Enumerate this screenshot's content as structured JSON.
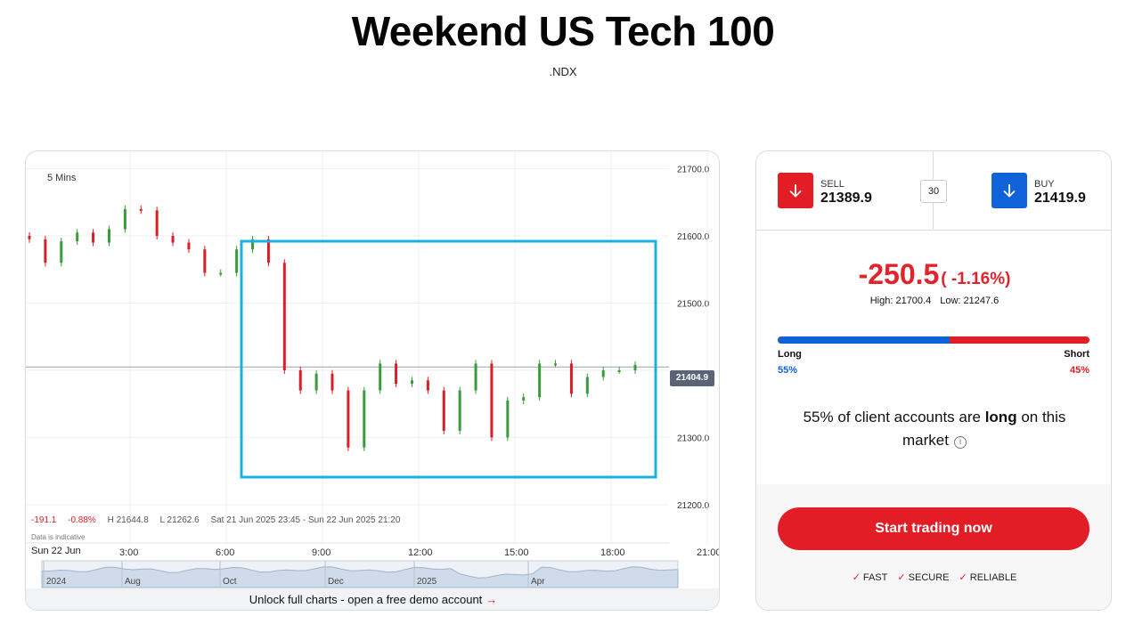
{
  "header": {
    "title": "Weekend US Tech 100",
    "symbol": ".NDX"
  },
  "chart": {
    "interval": "5 Mins",
    "y_ticks": [
      "21700.0",
      "21600.0",
      "21500.0",
      "21300.0",
      "21200.0"
    ],
    "x_ticks": [
      "3:00",
      "6:00",
      "9:00",
      "12:00",
      "15:00",
      "18:00",
      "21:00"
    ],
    "last_price": "21404.9",
    "stats": {
      "change": "-191.1",
      "change_pct": "-0.88%",
      "high": "H 21644.8",
      "low": "L 21262.6",
      "range": "Sat 21 Jun 2025 23:45 - Sun 22 Jun 2025 21:20"
    },
    "indicative": "Data is indicative",
    "date_label": "Sun 22 Jun",
    "navigator_labels": [
      "2024",
      "Aug",
      "Oct",
      "Dec",
      "2025",
      "Apr"
    ],
    "footer_text": "Unlock full charts - open a free demo account",
    "footer_arrow": "→",
    "colors": {
      "up": "#3a9b3a",
      "down": "#d71f26",
      "highlight": "#1ab0e0"
    }
  },
  "trade": {
    "sell_label": "SELL",
    "sell_price": "21389.9",
    "buy_label": "BUY",
    "buy_price": "21419.9",
    "spread": "30",
    "change": "-250.5",
    "change_pct": "( -1.16%)",
    "high": "High: 21700.4",
    "low": "Low: 21247.6",
    "long_label": "Long",
    "short_label": "Short",
    "long_pct": "55%",
    "short_pct": "45%",
    "long_fraction": 0.55,
    "sentence_pre": "55% of client accounts are ",
    "sentence_bold": "long",
    "sentence_post": " on this market",
    "cta": "Start trading now",
    "badges": [
      "FAST",
      "SECURE",
      "RELIABLE"
    ]
  },
  "chart_data": {
    "type": "line",
    "title": "",
    "xlabel": "",
    "ylabel": "",
    "ylim": [
      21180,
      21710
    ],
    "x": [
      "0:00",
      "0:30",
      "1:00",
      "1:30",
      "2:00",
      "2:30",
      "3:00",
      "3:30",
      "4:00",
      "4:30",
      "5:00",
      "5:30",
      "6:00",
      "6:30",
      "7:00",
      "7:30",
      "8:00",
      "8:30",
      "9:00",
      "9:30",
      "10:00",
      "10:30",
      "11:00",
      "11:30",
      "12:00",
      "12:30",
      "13:00",
      "13:30",
      "14:00",
      "14:30",
      "15:00",
      "15:30",
      "16:00",
      "16:30",
      "17:00",
      "17:30",
      "18:00",
      "18:30",
      "19:00"
    ],
    "series": [
      {
        "values": [
          21595,
          21560,
          21592,
          21605,
          21590,
          21610,
          21640,
          21638,
          21600,
          21590,
          21580,
          21545,
          21545,
          21580,
          21595,
          21560,
          21400,
          21370,
          21395,
          21370,
          21285,
          21370,
          21410,
          21380,
          21385,
          21370,
          21310,
          21370,
          21410,
          21300,
          21355,
          21360,
          21410,
          21410,
          21365,
          21390,
          21400,
          21400,
          21408
        ]
      }
    ],
    "last_value": 21404.9
  }
}
